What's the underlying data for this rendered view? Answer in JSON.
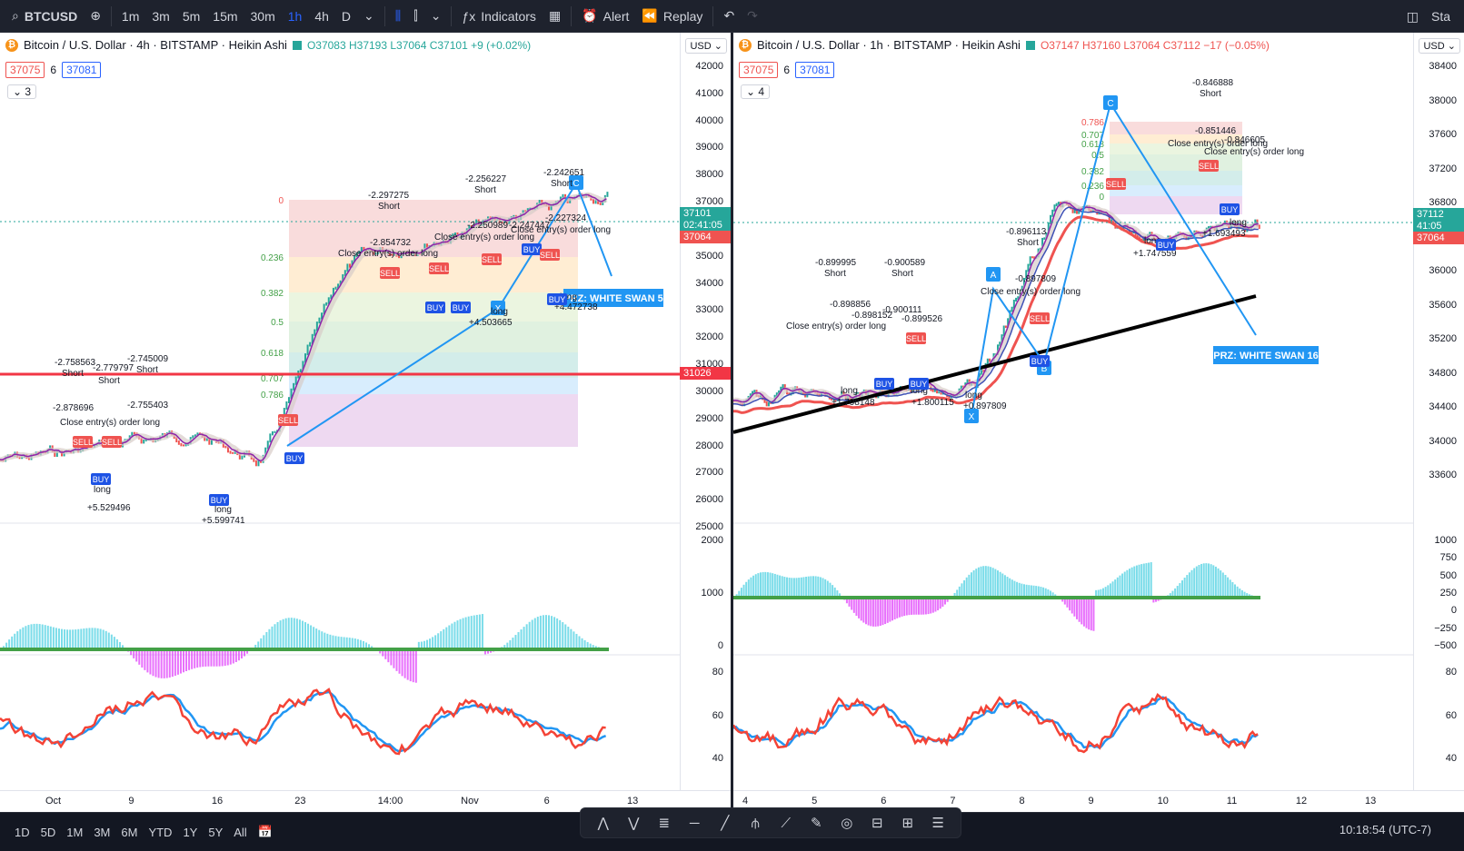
{
  "topbar": {
    "symbol": "BTCUSD",
    "intervals": [
      "1m",
      "3m",
      "5m",
      "15m",
      "30m",
      "1h",
      "4h",
      "D"
    ],
    "active_interval": "1h",
    "indicators_label": "Indicators",
    "alert_label": "Alert",
    "replay_label": "Replay",
    "right_label": "Sta"
  },
  "left": {
    "title": "Bitcoin / U.S. Dollar · 4h · BITSTAMP · Heikin Ashi",
    "ohlc": "O37083 H37193 L37064 C37101 +9 (+0.02%)",
    "box1": "37075",
    "box_mid": "6",
    "box2": "37081",
    "collapse": "3",
    "currency": "USD",
    "price_ticks": [
      "42000",
      "41000",
      "40000",
      "39000",
      "38000",
      "37000",
      "36000",
      "35000",
      "34000",
      "33000",
      "32000",
      "31000",
      "30000",
      "29000",
      "28000",
      "27000",
      "26000",
      "25000"
    ],
    "tag_price": "37101",
    "tag_countdown": "02:41:05",
    "tag_low": "37064",
    "tag_line": "31026",
    "macd_ticks": [
      "2000",
      "1000",
      "0"
    ],
    "rsi_ticks": [
      "80",
      "60",
      "40"
    ],
    "time_ticks": [
      "Oct",
      "9",
      "16",
      "23",
      "14:00",
      "Nov",
      "6",
      "13"
    ],
    "fib_levels": [
      "0",
      "0.236",
      "0.382",
      "0.5",
      "0.618",
      "0.707",
      "0.786"
    ],
    "prz_label": "PRZ: WHITE SWAN 5",
    "annotations": [
      "-2.297275",
      "Short",
      "-2.256227",
      "Short",
      "-2.242651",
      "Short",
      "-2.854732",
      "Close entry(s) order long",
      "-2.250989",
      "Close entry(s) order long",
      "-2.247447",
      "-2.227324",
      "Close entry(s) order long",
      "-2.758563",
      "Short",
      "-2.779797",
      "Short",
      "-2.745009",
      "Short",
      "-2.878696",
      "-2.755403",
      "Close entry(s) order long",
      "long",
      "+5.529496",
      "long",
      "+5.599741",
      "long",
      "+4.503665",
      "long",
      "+4.472738"
    ]
  },
  "right": {
    "title": "Bitcoin / U.S. Dollar · 1h · BITSTAMP · Heikin Ashi",
    "ohlc": "O37147 H37160 L37064 C37112 −17 (−0.05%)",
    "box1": "37075",
    "box_mid": "6",
    "box2": "37081",
    "collapse": "4",
    "currency": "USD",
    "price_ticks": [
      "38400",
      "38000",
      "37600",
      "37200",
      "36800",
      "36400",
      "36000",
      "35600",
      "35200",
      "34800",
      "34400",
      "34000",
      "33600"
    ],
    "tag_price": "37112",
    "tag_countdown": "41:05",
    "tag_low": "37064",
    "macd_ticks": [
      "1000",
      "750",
      "500",
      "250",
      "0",
      "−250",
      "−500"
    ],
    "rsi_ticks": [
      "80",
      "60",
      "40"
    ],
    "time_ticks": [
      "4",
      "5",
      "6",
      "7",
      "8",
      "9",
      "10",
      "11",
      "12",
      "13"
    ],
    "fib_levels": [
      "0.786",
      "0.707",
      "0.618",
      "0.5",
      "0.382",
      "0.236",
      "0"
    ],
    "prz_label": "PRZ: WHITE SWAN 16",
    "pattern_points": [
      "X",
      "A",
      "B",
      "C"
    ],
    "annotations": [
      "-0.846888",
      "Short",
      "-0.851446",
      "-0.846605",
      "Close entry(s) order long",
      "Close entry(s) order long",
      "-0.896113",
      "Short",
      "-0.897809",
      "Close entry(s) order long",
      "-0.899995",
      "Short",
      "-0.900589",
      "Short",
      "-0.900111",
      "-0.899526",
      "-0.898856",
      "-0.898152",
      "Close entry(s) order long",
      "long",
      "+1.798148",
      "long",
      "+1.800115",
      "long",
      "+0.897809",
      "long",
      "+1.747559",
      "long",
      "+1.693493"
    ]
  },
  "bottombar": {
    "ranges": [
      "1D",
      "5D",
      "1M",
      "3M",
      "6M",
      "YTD",
      "1Y",
      "5Y",
      "All"
    ],
    "clock": "10:18:54 (UTC-7)"
  },
  "colors": {
    "bg_dark": "#131722",
    "bull": "#26a69a",
    "bear": "#ef5350",
    "blue": "#2196f3",
    "purple": "#9c27b0",
    "cyan": "#26c6da"
  }
}
